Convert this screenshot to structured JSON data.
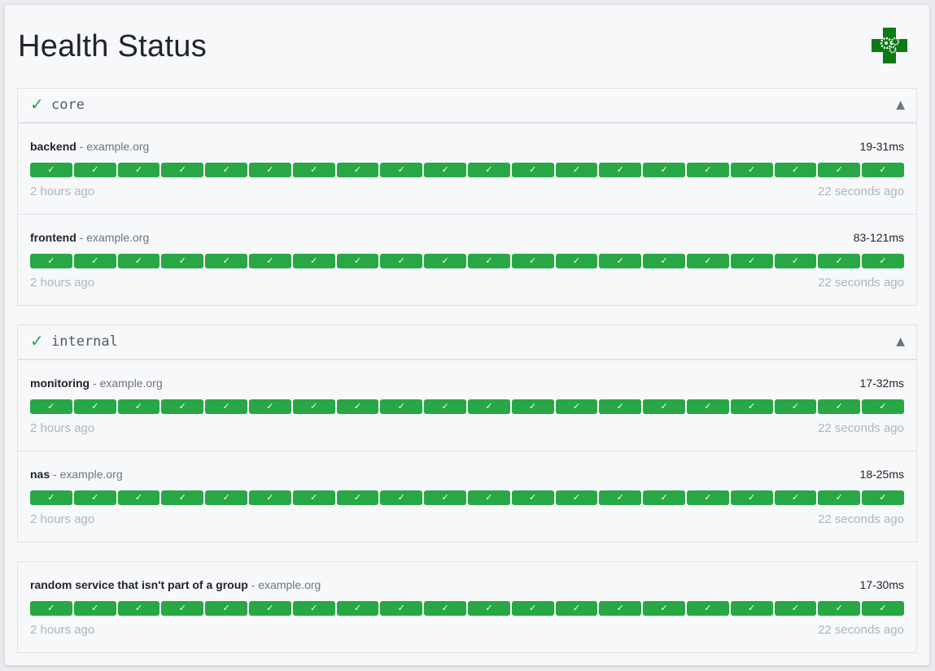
{
  "page": {
    "title": "Health Status",
    "logo": "medical-cross-gears-logo"
  },
  "colors": {
    "success": "#28a745",
    "group_name": "#555b61",
    "muted": "#adb5bd"
  },
  "groups": [
    {
      "name": "core",
      "status_icon": "✓",
      "toggle_icon": "▲",
      "services": [
        {
          "name": "backend",
          "separator": "-",
          "host": "example.org",
          "response_time": "19-31ms",
          "oldest": "2 hours ago",
          "newest": "22 seconds ago",
          "results": [
            "success",
            "success",
            "success",
            "success",
            "success",
            "success",
            "success",
            "success",
            "success",
            "success",
            "success",
            "success",
            "success",
            "success",
            "success",
            "success",
            "success",
            "success",
            "success",
            "success"
          ]
        },
        {
          "name": "frontend",
          "separator": "-",
          "host": "example.org",
          "response_time": "83-121ms",
          "oldest": "2 hours ago",
          "newest": "22 seconds ago",
          "results": [
            "success",
            "success",
            "success",
            "success",
            "success",
            "success",
            "success",
            "success",
            "success",
            "success",
            "success",
            "success",
            "success",
            "success",
            "success",
            "success",
            "success",
            "success",
            "success",
            "success"
          ]
        }
      ]
    },
    {
      "name": "internal",
      "status_icon": "✓",
      "toggle_icon": "▲",
      "services": [
        {
          "name": "monitoring",
          "separator": "-",
          "host": "example.org",
          "response_time": "17-32ms",
          "oldest": "2 hours ago",
          "newest": "22 seconds ago",
          "results": [
            "success",
            "success",
            "success",
            "success",
            "success",
            "success",
            "success",
            "success",
            "success",
            "success",
            "success",
            "success",
            "success",
            "success",
            "success",
            "success",
            "success",
            "success",
            "success",
            "success"
          ]
        },
        {
          "name": "nas",
          "separator": "-",
          "host": "example.org",
          "response_time": "18-25ms",
          "oldest": "2 hours ago",
          "newest": "22 seconds ago",
          "results": [
            "success",
            "success",
            "success",
            "success",
            "success",
            "success",
            "success",
            "success",
            "success",
            "success",
            "success",
            "success",
            "success",
            "success",
            "success",
            "success",
            "success",
            "success",
            "success",
            "success"
          ]
        }
      ]
    }
  ],
  "ungrouped": {
    "services": [
      {
        "name": "random service that isn't part of a group",
        "separator": "-",
        "host": "example.org",
        "response_time": "17-30ms",
        "oldest": "2 hours ago",
        "newest": "22 seconds ago",
        "results": [
          "success",
          "success",
          "success",
          "success",
          "success",
          "success",
          "success",
          "success",
          "success",
          "success",
          "success",
          "success",
          "success",
          "success",
          "success",
          "success",
          "success",
          "success",
          "success",
          "success"
        ]
      }
    ]
  },
  "result_icon": "✓"
}
